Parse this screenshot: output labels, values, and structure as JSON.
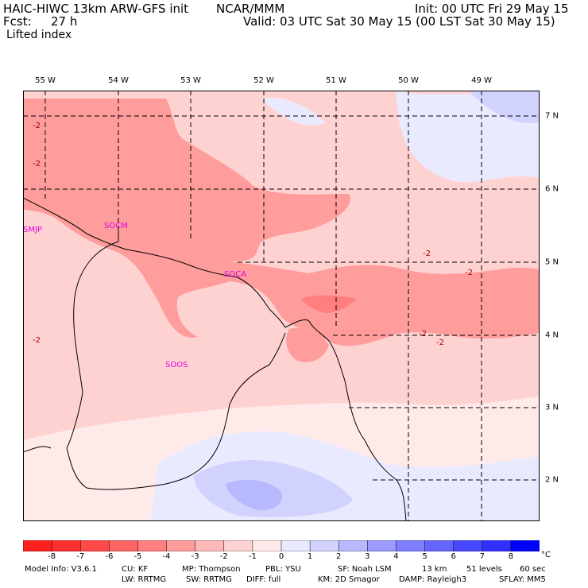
{
  "header": {
    "model": "HAIC-HIWC 13km ARW-GFS init",
    "org": "NCAR/MMM",
    "init": "Init: 00 UTC Fri 29 May 15",
    "fcst_label": "Fcst:",
    "fcst_value": "27 h",
    "valid": "Valid: 03 UTC Sat 30 May 15 (00 LST Sat 30 May 15)",
    "field": "Lifted index"
  },
  "map": {
    "lon_labels": [
      "55 W",
      "54 W",
      "53 W",
      "52 W",
      "51 W",
      "50 W",
      "49 W"
    ],
    "lat_labels": [
      "7 N",
      "6 N",
      "5 N",
      "4 N",
      "3 N",
      "2 N"
    ],
    "stations": [
      "SMJP",
      "SOCM",
      "SOCA",
      "SOOS"
    ],
    "contour_labels": [
      "-2",
      "-2",
      "-2",
      "-2",
      "-2",
      "-2",
      "-2"
    ]
  },
  "colorbar": {
    "labels": [
      "-8",
      "-7",
      "-6",
      "-5",
      "-4",
      "-3",
      "-2",
      "-1",
      "0",
      "1",
      "2",
      "3",
      "4",
      "5",
      "6",
      "7",
      "8"
    ],
    "unit": "°C",
    "colors": [
      "#ff2020",
      "#ff3030",
      "#ff4848",
      "#ff6464",
      "#ff7e7e",
      "#ff9c9c",
      "#ffb8b8",
      "#ffd2d2",
      "#ffeaea",
      "#eaeaff",
      "#d2d2ff",
      "#b8b8ff",
      "#9c9cff",
      "#7e7eff",
      "#6464ff",
      "#4848ff",
      "#3030ff",
      "#0000ff"
    ]
  },
  "footer": {
    "line1": [
      "Model Info: V3.6.1",
      "CU: KF",
      "MP: Thompson",
      "PBL: YSU",
      "SF: Noah LSM",
      "13 km",
      "51 levels",
      "60 sec"
    ],
    "line2": [
      "LW: RRTMG",
      "SW: RRTMG",
      "DIFF: full",
      "KM: 2D Smagor",
      "DAMP: Rayleigh3",
      "SFLAY: MM5"
    ]
  }
}
